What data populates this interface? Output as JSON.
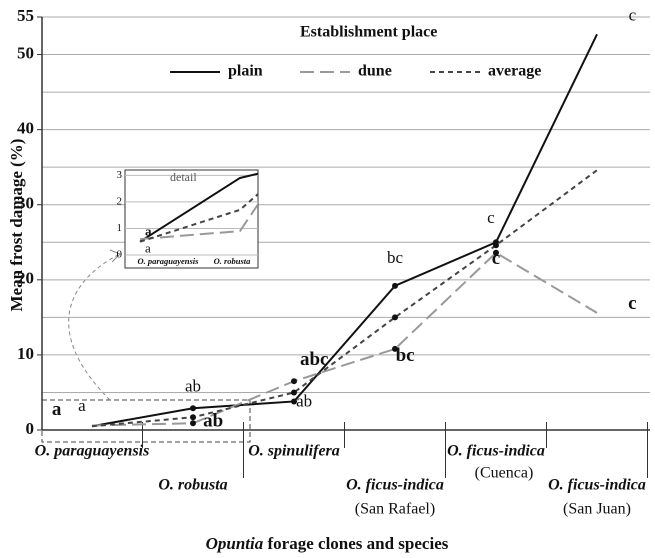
{
  "chart_data": {
    "type": "line",
    "ylabel": "Mean frost damage  (%)",
    "xlabel": [
      "Opuntia",
      " forage clones and species"
    ],
    "legend_title": "Establishment place",
    "categories": [
      [
        "O. paraguayensis"
      ],
      [
        "O. robusta"
      ],
      [
        "O. spinulifera"
      ],
      [
        "O. ficus-indica",
        "(San Rafael)"
      ],
      [
        "O. ficus-indica",
        "(Cuenca)"
      ],
      [
        "O. ficus-indica",
        "(San Juan)"
      ]
    ],
    "series": [
      {
        "name": "plain",
        "color": "#111111",
        "dash": "none",
        "values": [
          0.5,
          2.9,
          3.8,
          19.2,
          25.0,
          52.7
        ]
      },
      {
        "name": "dune",
        "color": "#999999",
        "dash": "14 6",
        "values": [
          0.6,
          0.9,
          6.5,
          10.8,
          23.6,
          15.6
        ]
      },
      {
        "name": "average",
        "color": "#444444",
        "dash": "5 4",
        "values": [
          0.5,
          1.7,
          5.0,
          15.0,
          24.6,
          34.6
        ]
      }
    ],
    "ylim": [
      0,
      55
    ],
    "yticks": [
      0,
      10,
      20,
      30,
      40,
      50,
      55
    ],
    "ygrid": [
      5,
      10,
      15,
      20,
      25,
      30,
      35,
      40,
      45,
      50,
      55
    ],
    "annotations": [
      {
        "text": "a",
        "x": -0.35,
        "y": 1.5,
        "bold": true
      },
      {
        "text": "a",
        "x": -0.1,
        "y": 2.0,
        "bold": false
      },
      {
        "text": "ab",
        "x": 0.0,
        "y": 4.6,
        "bold": false
      },
      {
        "text": "ab",
        "x": 0.2,
        "y": 0.0,
        "bold": true
      },
      {
        "text": "abc",
        "x": 0.2,
        "y": 8.2,
        "bold": true
      },
      {
        "text": "ab",
        "x": 0.1,
        "y": 2.6,
        "bold": false
      },
      {
        "text": "bc",
        "x": 0.0,
        "y": 21.7,
        "bold": false
      },
      {
        "text": "bc",
        "x": 0.1,
        "y": 8.7,
        "bold": true
      },
      {
        "text": "c",
        "x": -0.05,
        "y": 27.0,
        "bold": false
      },
      {
        "text": "c",
        "x": 0.0,
        "y": 21.6,
        "bold": true
      },
      {
        "text": "c",
        "x": 0.35,
        "y": 54.0,
        "bold": false
      },
      {
        "text": "c",
        "x": 0.35,
        "y": 15.6,
        "bold": true
      }
    ],
    "annotation_categories": [
      0,
      0,
      1,
      1,
      2,
      2,
      3,
      3,
      4,
      4,
      5,
      5
    ],
    "inset": {
      "title": "detail",
      "ylim": [
        0,
        3.2
      ],
      "yticks": [
        0,
        1,
        2,
        3
      ],
      "annotations": [
        {
          "text": "a",
          "y": 0.85
        },
        {
          "text": "a",
          "y": 0.2
        }
      ]
    }
  }
}
